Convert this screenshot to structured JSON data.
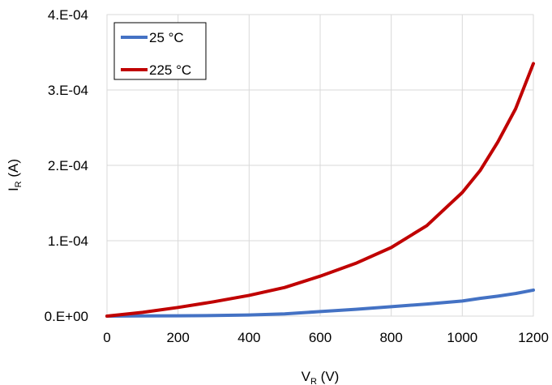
{
  "chart_data": {
    "type": "line",
    "title": "",
    "xlabel": {
      "main": "V",
      "sub": "R",
      "unit": " (V)"
    },
    "ylabel": {
      "main": "I",
      "sub": "R",
      "unit": " (A)"
    },
    "xlim": [
      0,
      1200
    ],
    "ylim": [
      0,
      0.0004
    ],
    "xticks": [
      0,
      200,
      400,
      600,
      800,
      1000,
      1200
    ],
    "xtick_labels": [
      "0",
      "200",
      "400",
      "600",
      "800",
      "1000",
      "1200"
    ],
    "yticks": [
      0,
      0.0001,
      0.0002,
      0.0003,
      0.0004
    ],
    "ytick_labels": [
      "0.E+00",
      "1.E-04",
      "2.E-04",
      "3.E-04",
      "4.E-04"
    ],
    "grid": true,
    "legend_position": "top-left",
    "x": [
      0,
      100,
      200,
      300,
      400,
      500,
      600,
      700,
      800,
      900,
      1000,
      1050,
      1100,
      1150,
      1200
    ],
    "series": [
      {
        "name": "25 °C",
        "color": "#4472C4",
        "values": [
          0,
          2e-07,
          4e-07,
          8e-07,
          1.5e-06,
          3e-06,
          6e-06,
          9e-06,
          1.25e-05,
          1.6e-05,
          2e-05,
          2.35e-05,
          2.65e-05,
          3e-05,
          3.45e-05
        ]
      },
      {
        "name": "225 °C",
        "color": "#C00000",
        "values": [
          0,
          5e-06,
          1.15e-05,
          1.9e-05,
          2.75e-05,
          3.8e-05,
          5.3e-05,
          7e-05,
          9.1e-05,
          0.00012,
          0.000164,
          0.000193,
          0.000231,
          0.000275,
          0.000335
        ]
      }
    ]
  }
}
